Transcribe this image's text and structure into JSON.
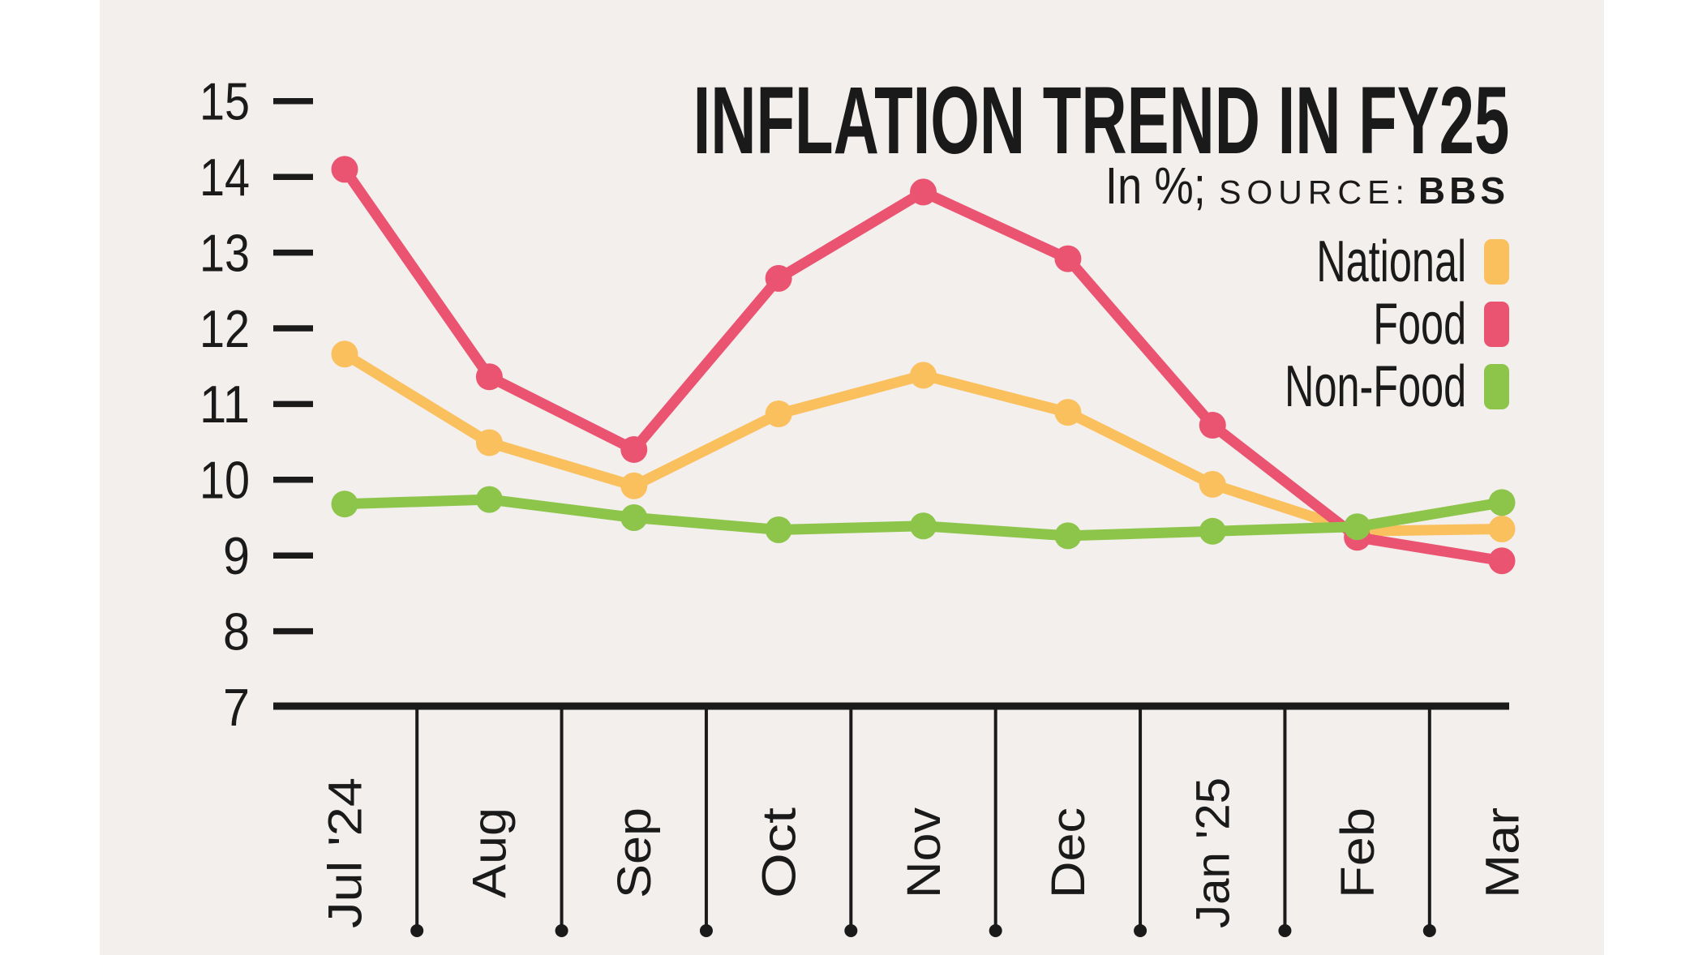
{
  "page": {
    "background": "#ffffff",
    "panel_background": "#f3efed",
    "text_color": "#1a1a1a"
  },
  "header": {
    "title": "INFLATION TREND IN FY25",
    "subtitle_unit": "In %;",
    "subtitle_source_label": "SOURCE:",
    "subtitle_source_value": "BBS"
  },
  "legend": [
    {
      "label": "National",
      "color": "#fbc05e"
    },
    {
      "label": "Food",
      "color": "#ea5471"
    },
    {
      "label": "Non-Food",
      "color": "#8dc54a"
    }
  ],
  "chart_data": {
    "type": "line",
    "title": "INFLATION TREND IN FY25",
    "subtitle": "In %; SOURCE: BBS",
    "xlabel": "",
    "ylabel": "",
    "categories": [
      "Jul '24",
      "Aug",
      "Sep",
      "Oct",
      "Nov",
      "Dec",
      "Jan '25",
      "Feb",
      "Mar"
    ],
    "series": [
      {
        "name": "National",
        "color": "#fbc05e",
        "values": [
          11.66,
          10.49,
          9.92,
          10.87,
          11.38,
          10.89,
          9.94,
          9.32,
          9.35
        ]
      },
      {
        "name": "Food",
        "color": "#ea5471",
        "values": [
          14.1,
          11.36,
          10.4,
          12.66,
          13.8,
          12.92,
          10.72,
          9.24,
          8.93
        ]
      },
      {
        "name": "Non-Food",
        "color": "#8dc54a",
        "values": [
          9.68,
          9.74,
          9.5,
          9.34,
          9.39,
          9.26,
          9.32,
          9.38,
          9.7
        ]
      }
    ],
    "yticks": [
      7,
      8,
      9,
      10,
      11,
      12,
      13,
      14,
      15
    ],
    "ylim": [
      7,
      15.5
    ],
    "grid": false,
    "marker": "circle",
    "legend_position": "top-right",
    "axis_color": "#1a1a1a"
  }
}
